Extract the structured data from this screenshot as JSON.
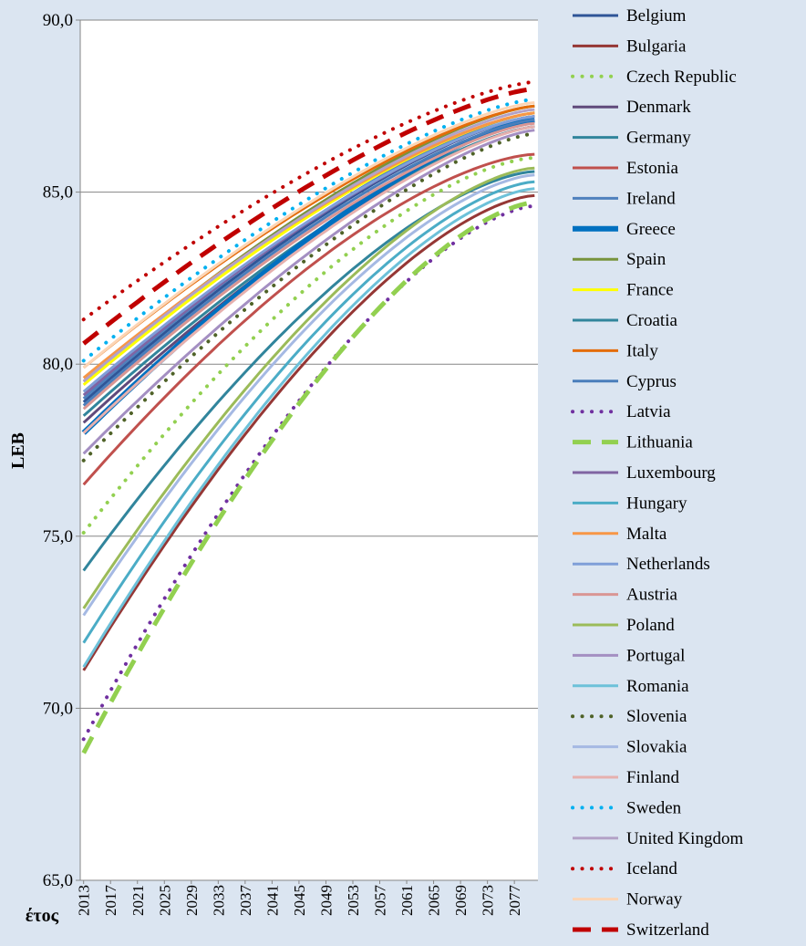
{
  "chart_data": {
    "type": "line",
    "title": "",
    "xlabel": "έτος",
    "ylabel": "LEB",
    "ylim": [
      65,
      90
    ],
    "yticks": [
      "65,0",
      "70,0",
      "75,0",
      "80,0",
      "85,0",
      "90,0"
    ],
    "xrange": [
      2013,
      2080
    ],
    "xticks": [
      "2013",
      "2017",
      "2021",
      "2025",
      "2029",
      "2033",
      "2037",
      "2041",
      "2045",
      "2049",
      "2053",
      "2057",
      "2061",
      "2065",
      "2069",
      "2073",
      "2077"
    ],
    "grid": true,
    "legend_position": "right",
    "series": [
      {
        "name": "Belgium",
        "start": 78.9,
        "end": 87.2,
        "color": "#2f5597",
        "dash": "solid",
        "width": 3
      },
      {
        "name": "Bulgaria",
        "start": 71.1,
        "end": 84.9,
        "color": "#953735",
        "dash": "solid",
        "width": 3
      },
      {
        "name": "Czech Republic",
        "start": 75.1,
        "end": 86.0,
        "color": "#92d050",
        "dash": "dot",
        "width": 4
      },
      {
        "name": "Denmark",
        "start": 78.3,
        "end": 86.9,
        "color": "#604a7b",
        "dash": "solid",
        "width": 3
      },
      {
        "name": "Germany",
        "start": 78.5,
        "end": 86.9,
        "color": "#31859c",
        "dash": "solid",
        "width": 3
      },
      {
        "name": "Estonia",
        "start": 76.5,
        "end": 86.1,
        "color": "#c0504d",
        "dash": "solid",
        "width": 3
      },
      {
        "name": "Ireland",
        "start": 79.0,
        "end": 87.3,
        "color": "#4f81bd",
        "dash": "solid",
        "width": 3
      },
      {
        "name": "Greece",
        "start": 78.0,
        "end": 87.1,
        "color": "#0070c0",
        "dash": "solid",
        "width": 6
      },
      {
        "name": "Spain",
        "start": 79.5,
        "end": 87.5,
        "color": "#77933c",
        "dash": "solid",
        "width": 3
      },
      {
        "name": "France",
        "start": 79.4,
        "end": 87.3,
        "color": "#ffff00",
        "dash": "solid",
        "width": 3
      },
      {
        "name": "Croatia",
        "start": 74.0,
        "end": 85.6,
        "color": "#31859c",
        "dash": "solid",
        "width": 3
      },
      {
        "name": "Italy",
        "start": 79.9,
        "end": 87.5,
        "color": "#e46c0a",
        "dash": "solid",
        "width": 3
      },
      {
        "name": "Cyprus",
        "start": 78.8,
        "end": 87.1,
        "color": "#4a7ebb",
        "dash": "solid",
        "width": 3
      },
      {
        "name": "Latvia",
        "start": 69.1,
        "end": 84.6,
        "color": "#7030a0",
        "dash": "dot",
        "width": 4
      },
      {
        "name": "Lithuania",
        "start": 68.7,
        "end": 84.7,
        "color": "#92d050",
        "dash": "longdash",
        "width": 5
      },
      {
        "name": "Luxembourg",
        "start": 79.1,
        "end": 87.2,
        "color": "#8064a2",
        "dash": "solid",
        "width": 3
      },
      {
        "name": "Hungary",
        "start": 71.9,
        "end": 85.3,
        "color": "#4bacc6",
        "dash": "solid",
        "width": 3
      },
      {
        "name": "Malta",
        "start": 79.6,
        "end": 87.3,
        "color": "#f79646",
        "dash": "solid",
        "width": 3
      },
      {
        "name": "Netherlands",
        "start": 79.2,
        "end": 87.2,
        "color": "#7f9fd8",
        "dash": "solid",
        "width": 3
      },
      {
        "name": "Austria",
        "start": 78.7,
        "end": 87.0,
        "color": "#d99694",
        "dash": "solid",
        "width": 3
      },
      {
        "name": "Poland",
        "start": 72.9,
        "end": 85.7,
        "color": "#9bbb59",
        "dash": "solid",
        "width": 3
      },
      {
        "name": "Portugal",
        "start": 77.4,
        "end": 86.8,
        "color": "#a48fc2",
        "dash": "solid",
        "width": 3
      },
      {
        "name": "Romania",
        "start": 71.2,
        "end": 85.1,
        "color": "#6dc1d9",
        "dash": "solid",
        "width": 3
      },
      {
        "name": "Slovenia",
        "start": 77.2,
        "end": 86.7,
        "color": "#4f6228",
        "dash": "dot",
        "width": 4
      },
      {
        "name": "Slovakia",
        "start": 72.7,
        "end": 85.5,
        "color": "#a5b9e3",
        "dash": "solid",
        "width": 3
      },
      {
        "name": "Finland",
        "start": 78.0,
        "end": 86.9,
        "color": "#e6b0ae",
        "dash": "solid",
        "width": 3
      },
      {
        "name": "Sweden",
        "start": 80.1,
        "end": 87.7,
        "color": "#00b0f0",
        "dash": "dot",
        "width": 4
      },
      {
        "name": "United Kingdom",
        "start": 79.5,
        "end": 87.4,
        "color": "#b3a2c7",
        "dash": "solid",
        "width": 3
      },
      {
        "name": "Iceland",
        "start": 81.3,
        "end": 88.2,
        "color": "#c00000",
        "dash": "dot",
        "width": 4
      },
      {
        "name": "Norway",
        "start": 79.9,
        "end": 87.6,
        "color": "#fcd5b5",
        "dash": "solid",
        "width": 3
      },
      {
        "name": "Switzerland",
        "start": 80.6,
        "end": 88.0,
        "color": "#c00000",
        "dash": "longdash",
        "width": 5
      }
    ]
  }
}
